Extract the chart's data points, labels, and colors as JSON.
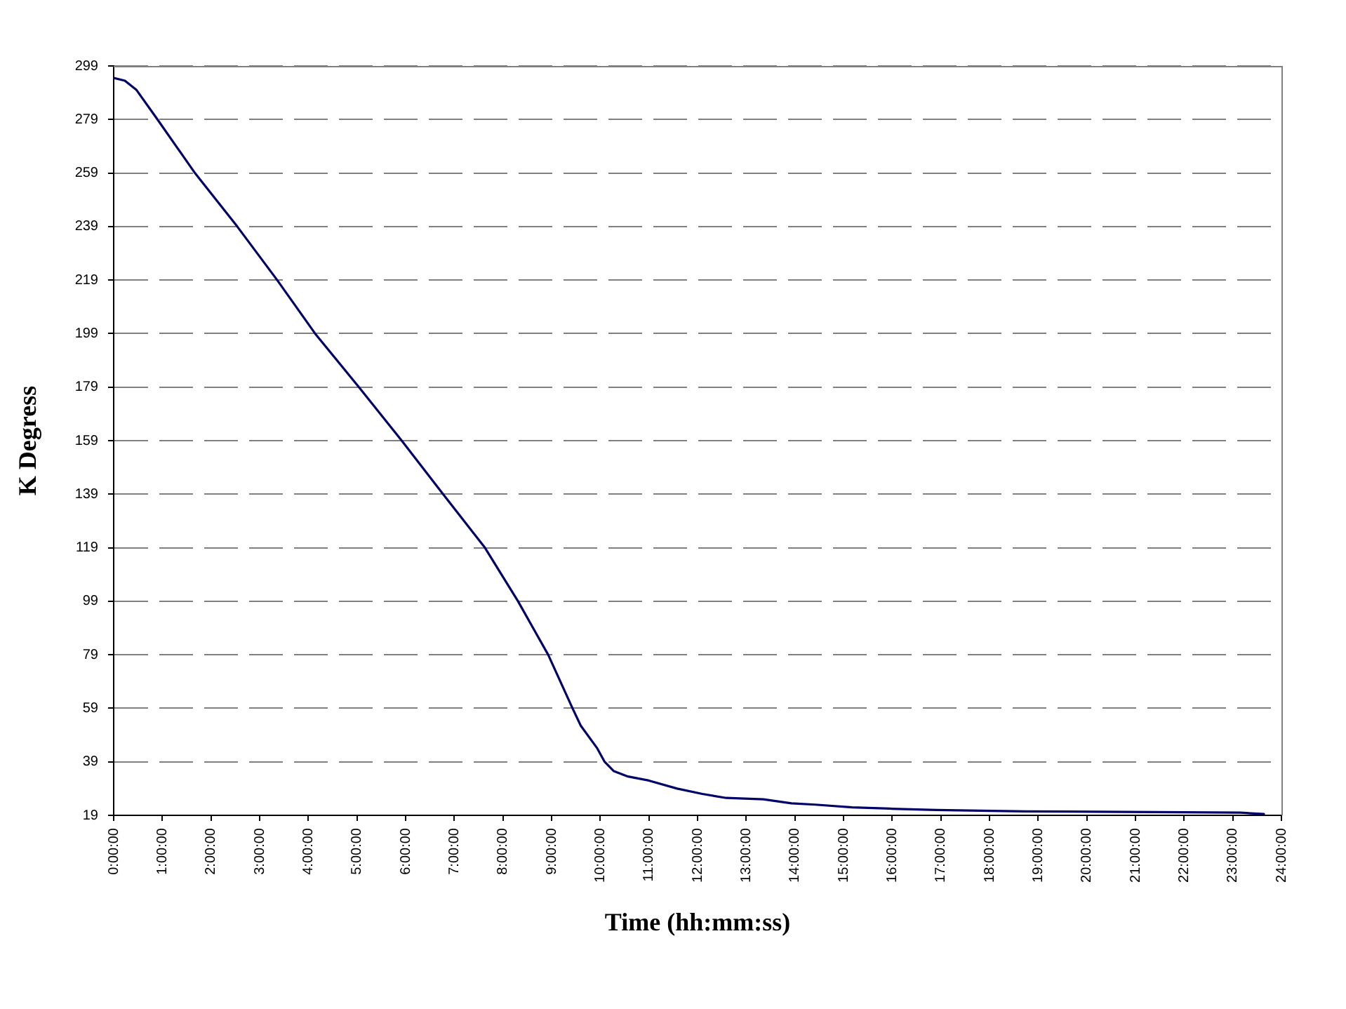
{
  "chart_data": {
    "type": "line",
    "xlabel": "Time (hh:mm:ss)",
    "ylabel": "K Degress",
    "x": [
      0,
      0.23,
      0.47,
      0.9,
      1.67,
      2.54,
      3.36,
      4.14,
      5.04,
      5.92,
      6.77,
      7.63,
      8.31,
      8.93,
      9.43,
      9.6,
      9.94,
      10.09,
      10.28,
      10.57,
      11.0,
      11.58,
      12.1,
      12.59,
      13.35,
      13.93,
      14.42,
      15.18,
      15.95,
      16.91,
      18.74,
      23.16,
      23.64
    ],
    "series": [
      {
        "color": "#000066",
        "values": [
          294.5,
          293.5,
          290,
          279,
          259,
          239,
          219,
          199,
          179,
          159,
          139,
          119,
          99,
          79,
          59,
          52.5,
          44,
          39,
          35.5,
          33.5,
          32,
          29,
          27,
          25.5,
          25,
          23.5,
          23,
          22,
          21.5,
          21,
          20.5,
          20,
          19.5
        ]
      }
    ],
    "xlim": [
      0,
      24
    ],
    "xticks": [
      {
        "value": 0,
        "label": "0:00:00"
      },
      {
        "value": 1,
        "label": "1:00:00"
      },
      {
        "value": 2,
        "label": "2:00:00"
      },
      {
        "value": 3,
        "label": "3:00:00"
      },
      {
        "value": 4,
        "label": "4:00:00"
      },
      {
        "value": 5,
        "label": "5:00:00"
      },
      {
        "value": 6,
        "label": "6:00:00"
      },
      {
        "value": 7,
        "label": "7:00:00"
      },
      {
        "value": 8,
        "label": "8:00:00"
      },
      {
        "value": 9,
        "label": "9:00:00"
      },
      {
        "value": 10,
        "label": "10:00:00"
      },
      {
        "value": 11,
        "label": "11:00:00"
      },
      {
        "value": 12,
        "label": "12:00:00"
      },
      {
        "value": 13,
        "label": "13:00:00"
      },
      {
        "value": 14,
        "label": "14:00:00"
      },
      {
        "value": 15,
        "label": "15:00:00"
      },
      {
        "value": 16,
        "label": "16:00:00"
      },
      {
        "value": 17,
        "label": "17:00:00"
      },
      {
        "value": 18,
        "label": "18:00:00"
      },
      {
        "value": 19,
        "label": "19:00:00"
      },
      {
        "value": 20,
        "label": "20:00:00"
      },
      {
        "value": 21,
        "label": "21:00:00"
      },
      {
        "value": 22,
        "label": "22:00:00"
      },
      {
        "value": 23,
        "label": "23:00:00"
      },
      {
        "value": 24,
        "label": "24:00:00"
      }
    ],
    "ylim": [
      19,
      299
    ],
    "yticks": [
      19,
      39,
      59,
      79,
      99,
      119,
      139,
      159,
      179,
      199,
      219,
      239,
      259,
      279,
      299
    ],
    "grid": "y",
    "marker": "none",
    "line_style": "solid"
  }
}
